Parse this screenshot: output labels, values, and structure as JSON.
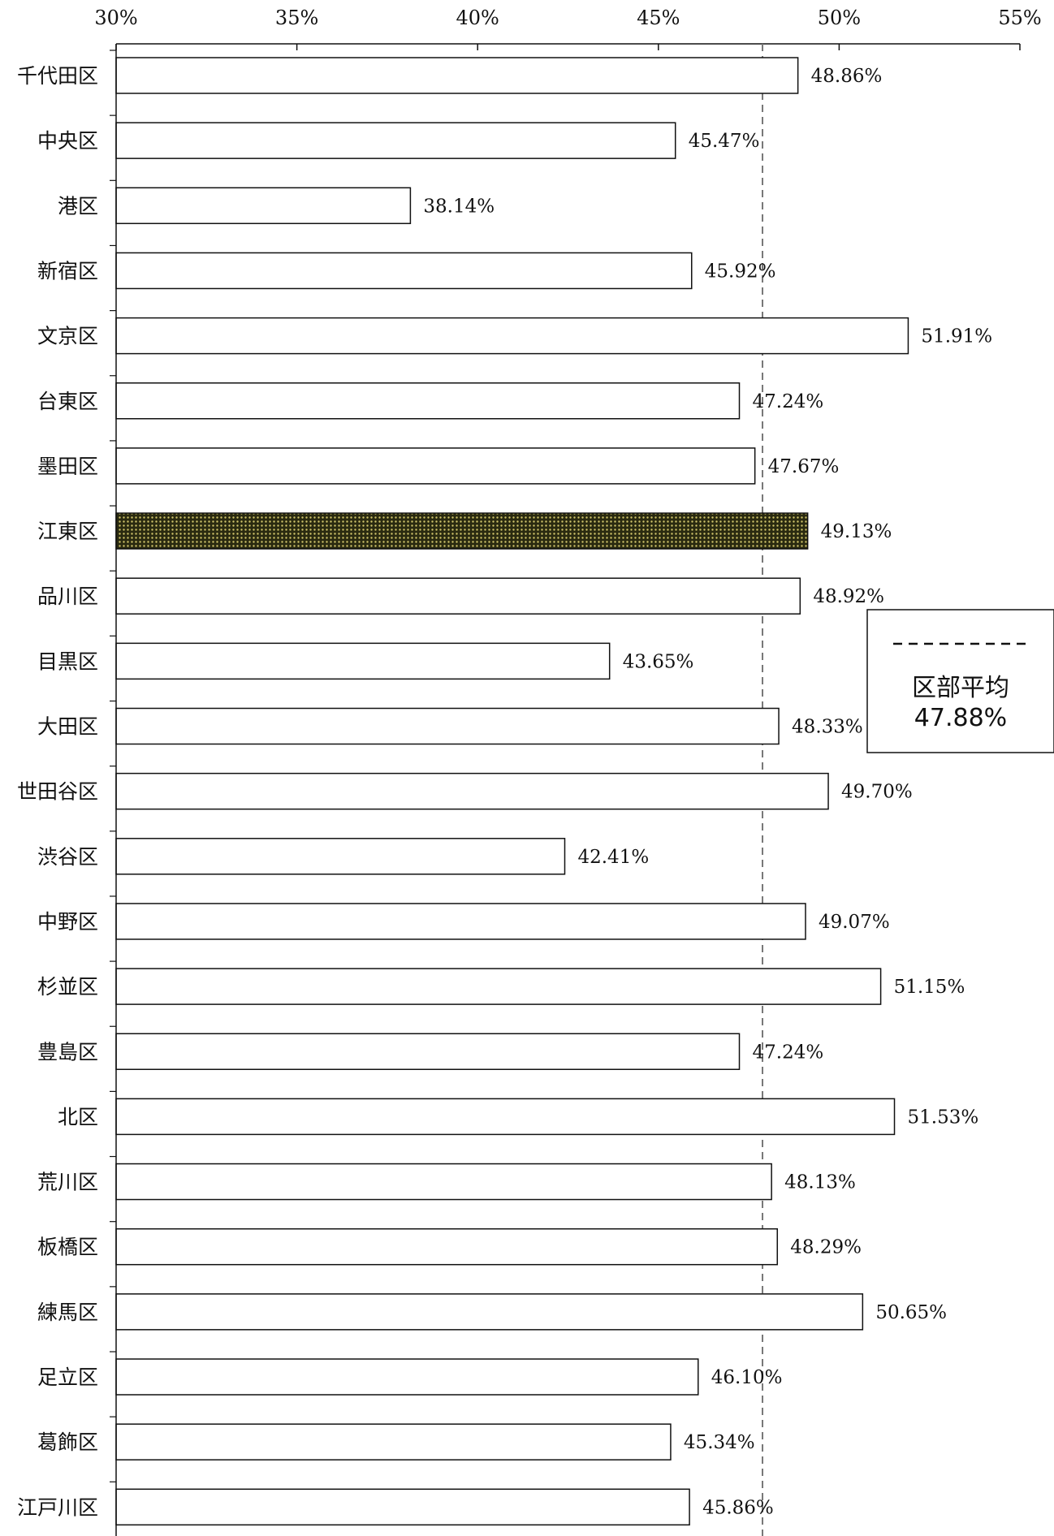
{
  "chart_data": {
    "type": "bar",
    "orientation": "horizontal",
    "title": "",
    "xlabel": "",
    "ylabel": "",
    "xlim": [
      30,
      55
    ],
    "xticks": [
      30,
      35,
      40,
      45,
      50,
      55
    ],
    "xtick_labels": [
      "30%",
      "35%",
      "40%",
      "45%",
      "50%",
      "55%"
    ],
    "categories": [
      "千代田区",
      "中央区",
      "港区",
      "新宿区",
      "文京区",
      "台東区",
      "墨田区",
      "江東区",
      "品川区",
      "目黒区",
      "大田区",
      "世田谷区",
      "渋谷区",
      "中野区",
      "杉並区",
      "豊島区",
      "北区",
      "荒川区",
      "板橋区",
      "練馬区",
      "足立区",
      "葛飾区",
      "江戸川区"
    ],
    "values": [
      48.86,
      45.47,
      38.14,
      45.92,
      51.91,
      47.24,
      47.67,
      49.13,
      48.92,
      43.65,
      48.33,
      49.7,
      42.41,
      49.07,
      51.15,
      47.24,
      51.53,
      48.13,
      48.29,
      50.65,
      46.1,
      45.34,
      45.86
    ],
    "value_labels": [
      "48.86%",
      "45.47%",
      "38.14%",
      "45.92%",
      "51.91%",
      "47.24%",
      "47.67%",
      "49.13%",
      "48.92%",
      "43.65%",
      "48.33%",
      "49.70%",
      "42.41%",
      "49.07%",
      "51.15%",
      "47.24%",
      "51.53%",
      "48.13%",
      "48.29%",
      "50.65%",
      "46.10%",
      "45.34%",
      "45.86%"
    ],
    "highlight_category": "江東区",
    "bar_color": "#ffffff",
    "bar_edge_color": "#111111",
    "highlight_color": "#2a2a10",
    "highlight_dot_color": "#cfc36a",
    "reference_line": {
      "value": 47.88,
      "style": "dashed",
      "color": "#777777",
      "label": "区部平均",
      "value_label": "47.88%"
    },
    "legend": {
      "placement": "right"
    },
    "grid": false
  }
}
